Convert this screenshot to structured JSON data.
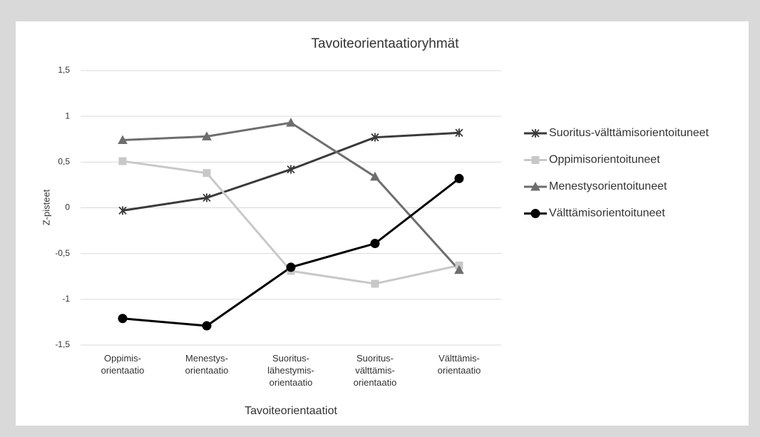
{
  "chart_data": {
    "type": "line",
    "title": "Tavoiteorientaatioryhmät",
    "x_label": "Tavoiteorientaatiot",
    "y_label": "Z-pisteet",
    "categories": [
      "Oppimis-\norientaatio",
      "Menestys-\norientaatio",
      "Suoritus-\nlähestymis-\norientaatio",
      "Suoritus-\nvälttämis-\norientaatio",
      "Välttämis-\norientaatio"
    ],
    "series": [
      {
        "name": "Suoritus-välttämisorientoituneet",
        "color": "#3a3a3a",
        "marker": "asterisk",
        "values": [
          -0.03,
          0.11,
          0.42,
          0.77,
          0.82
        ]
      },
      {
        "name": "Oppimisorientoituneet",
        "color": "#c8c8c8",
        "marker": "square",
        "values": [
          0.51,
          0.38,
          -0.69,
          -0.83,
          -0.63
        ]
      },
      {
        "name": "Menestysorientoituneet",
        "color": "#6e6e6e",
        "marker": "triangle",
        "values": [
          0.74,
          0.78,
          0.93,
          0.34,
          -0.68
        ]
      },
      {
        "name": "Välttämisorientoituneet",
        "color": "#000000",
        "marker": "circle",
        "values": [
          -1.21,
          -1.29,
          -0.65,
          -0.39,
          0.32
        ]
      }
    ],
    "ylim": [
      -1.5,
      1.5
    ],
    "yticks": [
      {
        "value": 1.5,
        "label": "1,5"
      },
      1,
      {
        "value": 0.5,
        "label": "0,5"
      },
      0,
      {
        "value": -0.5,
        "label": "-0,5"
      },
      -1,
      {
        "value": -1.5,
        "label": "-1,5"
      }
    ],
    "grid": true,
    "legend": "right"
  }
}
